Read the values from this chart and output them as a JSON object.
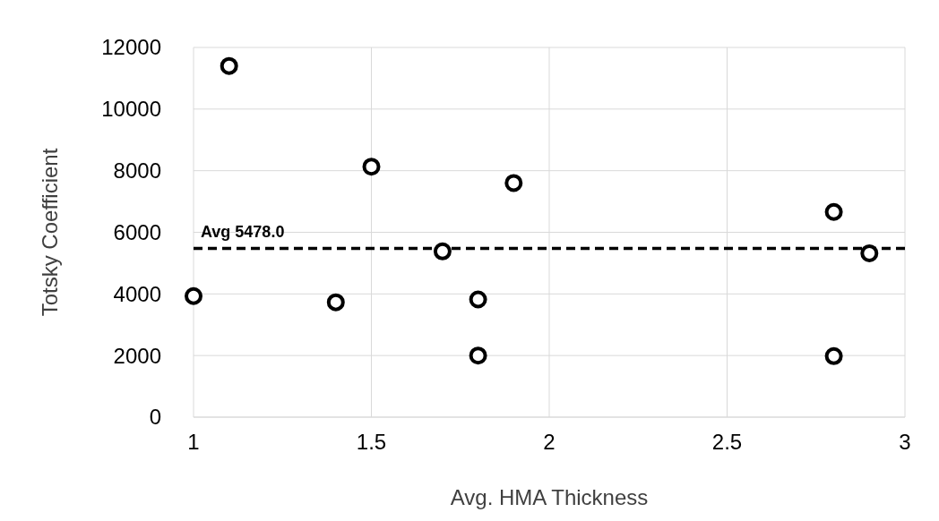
{
  "chart_data": {
    "type": "scatter",
    "xlabel": "Avg. HMA Thickness",
    "ylabel": "Totsky Coefficient",
    "xlim": [
      1,
      3
    ],
    "xticks": [
      1,
      1.5,
      2,
      2.5,
      3
    ],
    "ylim": [
      0,
      12000
    ],
    "yticks": [
      0,
      2000,
      4000,
      6000,
      8000,
      10000,
      12000
    ],
    "grid": true,
    "marker": "circle",
    "series": [
      {
        "color": "#000000",
        "x": [
          1.0,
          1.1,
          1.4,
          1.5,
          1.7,
          1.8,
          1.8,
          1.9,
          2.8,
          2.8,
          2.9
        ],
        "values": [
          3930,
          11400,
          3730,
          8130,
          5380,
          3820,
          2000,
          7600,
          6660,
          1980,
          5320
        ]
      }
    ],
    "ref_lines": [
      {
        "axis": "y",
        "value": 5478,
        "label": "Avg 5478.0",
        "color": "#000000",
        "line_style": "dashed"
      }
    ]
  }
}
